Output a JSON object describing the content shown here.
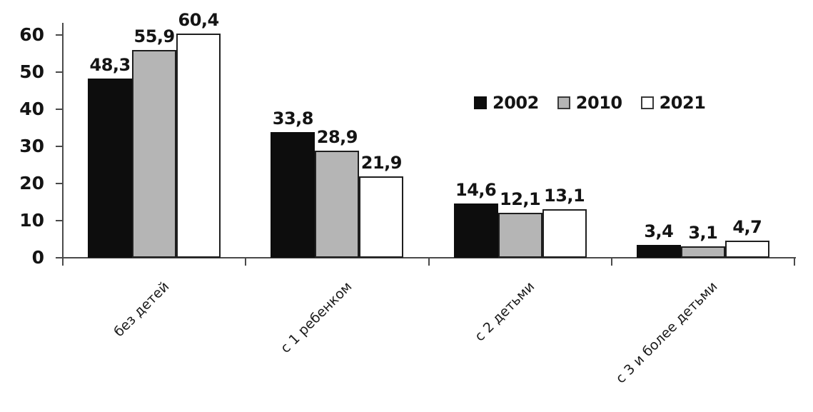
{
  "chart_data": {
    "type": "bar",
    "title": "",
    "xlabel": "",
    "ylabel": "",
    "categories": [
      "без детей",
      "с 1 ребенком",
      "с 2 детьми",
      "с 3 и более детьми"
    ],
    "series": [
      {
        "name": "2002",
        "color": "#0d0d0d",
        "values": [
          48.3,
          33.8,
          14.6,
          3.4
        ],
        "labels": [
          "48,3",
          "33,8",
          "14,6",
          "3,4"
        ]
      },
      {
        "name": "2010",
        "color": "#b5b5b5",
        "values": [
          55.9,
          28.9,
          12.1,
          3.1
        ],
        "labels": [
          "55,9",
          "28,9",
          "12,1",
          "3,1"
        ]
      },
      {
        "name": "2021",
        "color": "#ffffff",
        "values": [
          60.4,
          21.9,
          13.1,
          4.7
        ],
        "labels": [
          "60,4",
          "21,9",
          "13,1",
          "4,7"
        ]
      }
    ],
    "y_ticks": [
      "0",
      "10",
      "20",
      "30",
      "40",
      "50",
      "60"
    ],
    "ylim": [
      0,
      60
    ],
    "grid": false,
    "legend_position": "inside-upper-right",
    "decimal_separator": ",",
    "bar_border_color": "#1f1f1f",
    "axis_color": "#4a4a4a",
    "text_color": "#141414"
  }
}
